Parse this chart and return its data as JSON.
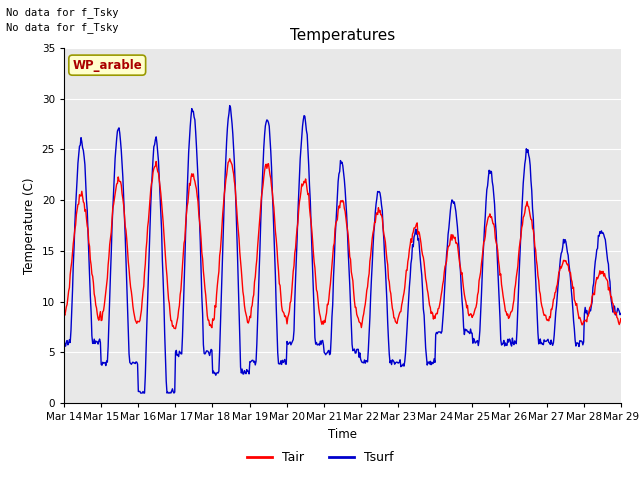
{
  "title": "Temperatures",
  "xlabel": "Time",
  "ylabel": "Temperature (C)",
  "ylim": [
    0,
    35
  ],
  "yticks": [
    0,
    5,
    10,
    15,
    20,
    25,
    30,
    35
  ],
  "note_lines": [
    "No data for f_Tsky",
    "No data for f_Tsky"
  ],
  "wp_label": "WP_arable",
  "tair_color": "#ff0000",
  "tsurf_color": "#0000cc",
  "tair_label": "Tair",
  "tsurf_label": "Tsurf",
  "fig_facecolor": "#ffffff",
  "ax_facecolor": "#e8e8e8",
  "grid_color": "#ffffff",
  "start_day": 14,
  "n_days": 15,
  "hours_per_day": 48,
  "day_base": [
    8.5,
    8.0,
    7.5,
    7.5,
    8.0,
    8.5,
    8.0,
    8.0,
    8.0,
    8.5,
    8.5,
    8.5,
    8.5,
    8.0,
    8.0
  ],
  "day_amp_tair": [
    12,
    14,
    16,
    15,
    16,
    15,
    14,
    12,
    11,
    9,
    8,
    10,
    11,
    6,
    5
  ],
  "day_amp_tsurf": [
    20,
    23,
    25,
    24,
    26,
    24,
    22,
    19,
    17,
    13,
    13,
    17,
    19,
    10,
    8
  ],
  "day_min_tsurf": [
    6,
    4,
    1,
    5,
    3,
    4,
    6,
    5,
    4,
    4,
    7,
    6,
    6,
    6,
    9
  ]
}
